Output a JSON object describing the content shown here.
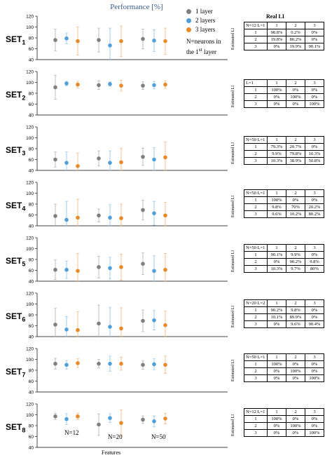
{
  "figure": {
    "title": "Performance [%]",
    "legend": [
      {
        "label": "1 layer",
        "color": "#7f7f7f"
      },
      {
        "label": "2 layers",
        "color": "#4f9fd8"
      },
      {
        "label": "3 layers",
        "color": "#e8892b"
      }
    ],
    "note_line1": "N=neurons in",
    "note_line2": "the 1",
    "note_sup": "st",
    "note_line2_end": " layer",
    "xaxis_title": "Features",
    "table_header": "Real LI",
    "estimated_label": "Estimated LI",
    "feature_labels": [
      "N=12",
      "N=20",
      "N=50"
    ]
  },
  "chart_data": [
    {
      "type": "scatter",
      "set": "SET",
      "sub": "1",
      "ylim": [
        40,
        120
      ],
      "yticks": [
        40,
        60,
        80,
        100,
        120
      ],
      "groups": [
        "N=12",
        "N=20",
        "N=50"
      ],
      "series": [
        {
          "name": "1 layer",
          "values": [
            76,
            76,
            78
          ],
          "err": [
            20,
            22,
            18
          ]
        },
        {
          "name": "2 layers",
          "values": [
            79,
            66,
            75
          ],
          "err": [
            10,
            32,
            20
          ]
        },
        {
          "name": "3 layers",
          "values": [
            74,
            74,
            74
          ],
          "err": [
            26,
            28,
            24
          ]
        }
      ]
    },
    {
      "type": "scatter",
      "set": "SET",
      "sub": "2",
      "ylim": [
        40,
        120
      ],
      "yticks": [
        40,
        60,
        80,
        100,
        120
      ],
      "groups": [
        "N=12",
        "N=20",
        "N=50"
      ],
      "series": [
        {
          "name": "1 layer",
          "values": [
            91,
            95,
            94
          ],
          "err": [
            22,
            8,
            7
          ]
        },
        {
          "name": "2 layers",
          "values": [
            98,
            97,
            95
          ],
          "err": [
            4,
            4,
            7
          ]
        },
        {
          "name": "3 layers",
          "values": [
            96,
            94,
            96
          ],
          "err": [
            6,
            10,
            7
          ]
        }
      ]
    },
    {
      "type": "scatter",
      "set": "SET",
      "sub": "3",
      "ylim": [
        40,
        120
      ],
      "yticks": [
        40,
        60,
        80,
        100,
        120
      ],
      "groups": [
        "N=12",
        "N=20",
        "N=50"
      ],
      "series": [
        {
          "name": "1 layer",
          "values": [
            60,
            62,
            65
          ],
          "err": [
            14,
            14,
            16
          ]
        },
        {
          "name": "2 layers",
          "values": [
            54,
            54,
            60
          ],
          "err": [
            20,
            22,
            22
          ]
        },
        {
          "name": "3 layers",
          "values": [
            48,
            55,
            64
          ],
          "err": [
            24,
            26,
            28
          ]
        }
      ]
    },
    {
      "type": "scatter",
      "set": "SET",
      "sub": "4",
      "ylim": [
        40,
        120
      ],
      "yticks": [
        40,
        60,
        80,
        100,
        120
      ],
      "groups": [
        "N=12",
        "N=20",
        "N=50"
      ],
      "series": [
        {
          "name": "1 layer",
          "values": [
            58,
            59,
            69
          ],
          "err": [
            22,
            12,
            18
          ]
        },
        {
          "name": "2 layers",
          "values": [
            51,
            55,
            63
          ],
          "err": [
            34,
            24,
            22
          ]
        },
        {
          "name": "3 layers",
          "values": [
            55,
            54,
            59
          ],
          "err": [
            34,
            26,
            24
          ]
        }
      ]
    },
    {
      "type": "scatter",
      "set": "SET",
      "sub": "5",
      "ylim": [
        40,
        120
      ],
      "yticks": [
        40,
        60,
        80,
        100,
        120
      ],
      "groups": [
        "N=12",
        "N=20",
        "N=50"
      ],
      "series": [
        {
          "name": "1 layer",
          "values": [
            61,
            66,
            72
          ],
          "err": [
            18,
            20,
            20
          ]
        },
        {
          "name": "2 layers",
          "values": [
            61,
            64,
            59
          ],
          "err": [
            16,
            20,
            28
          ]
        },
        {
          "name": "3 layers",
          "values": [
            59,
            66,
            61
          ],
          "err": [
            32,
            24,
            30
          ]
        }
      ]
    },
    {
      "type": "scatter",
      "set": "SET",
      "sub": "6",
      "ylim": [
        40,
        120
      ],
      "yticks": [
        40,
        60,
        80,
        100,
        120
      ],
      "groups": [
        "N=12",
        "N=20",
        "N=50"
      ],
      "series": [
        {
          "name": "1 layer",
          "values": [
            62,
            64,
            69
          ],
          "err": [
            30,
            34,
            20
          ]
        },
        {
          "name": "2 layers",
          "values": [
            53,
            58,
            70
          ],
          "err": [
            24,
            36,
            18
          ]
        },
        {
          "name": "3 layers",
          "values": [
            52,
            55,
            61
          ],
          "err": [
            34,
            38,
            26
          ]
        }
      ]
    },
    {
      "type": "scatter",
      "set": "SET",
      "sub": "7",
      "ylim": [
        40,
        120
      ],
      "yticks": [
        40,
        60,
        80,
        100,
        120
      ],
      "groups": [
        "N=12",
        "N=20",
        "N=50"
      ],
      "series": [
        {
          "name": "1 layer",
          "values": [
            92,
            92,
            90
          ],
          "err": [
            10,
            8,
            8
          ]
        },
        {
          "name": "2 layers",
          "values": [
            90,
            92,
            91
          ],
          "err": [
            8,
            14,
            10
          ]
        },
        {
          "name": "3 layers",
          "values": [
            93,
            92,
            90
          ],
          "err": [
            8,
            12,
            16
          ]
        }
      ]
    },
    {
      "type": "scatter",
      "set": "SET",
      "sub": "8",
      "ylim": [
        40,
        120
      ],
      "yticks": [
        40,
        60,
        80,
        100,
        120
      ],
      "groups": [
        "N=12",
        "N=20",
        "N=50"
      ],
      "series": [
        {
          "name": "1 layer",
          "values": [
            97,
            82,
            91
          ],
          "err": [
            6,
            20,
            7
          ]
        },
        {
          "name": "2 layers",
          "values": [
            92,
            94,
            88
          ],
          "err": [
            10,
            8,
            10
          ]
        },
        {
          "name": "3 layers",
          "values": [
            97,
            85,
            93
          ],
          "err": [
            6,
            24,
            10
          ]
        }
      ]
    }
  ],
  "tables": [
    {
      "corner": "N=12 L=1",
      "cols": [
        "1",
        "2",
        "3"
      ],
      "rows": [
        [
          "1",
          "98.8%",
          "0.2%",
          "0%"
        ],
        [
          "2",
          "19.8%",
          "80.2%",
          "0%"
        ],
        [
          "3",
          "0%",
          "19.9%",
          "90.1%"
        ]
      ]
    },
    {
      "corner": "L=1",
      "cols": [
        "1",
        "2",
        "3"
      ],
      "rows": [
        [
          "1",
          "100%",
          "0%",
          "0%"
        ],
        [
          "2",
          "0%",
          "100%",
          "0%"
        ],
        [
          "3",
          "0%",
          "0%",
          "100%"
        ]
      ]
    },
    {
      "corner": "N=50 L=1",
      "cols": [
        "1",
        "2",
        "3"
      ],
      "rows": [
        [
          "1",
          "79.3%",
          "20.7%",
          "0%"
        ],
        [
          "2",
          "9.9%",
          "79.8%",
          "10.3%"
        ],
        [
          "3",
          "10.3%",
          "38.9%",
          "50.8%"
        ]
      ]
    },
    {
      "corner": "N=50 L=1",
      "cols": [
        "1",
        "2",
        "3"
      ],
      "rows": [
        [
          "1",
          "100%",
          "0%",
          "0%"
        ],
        [
          "2",
          "9.8%",
          "70%",
          "20.2%"
        ],
        [
          "3",
          "9.6%",
          "10.2%",
          "80.2%"
        ]
      ]
    },
    {
      "corner": "N=50 L=1",
      "cols": [
        "1",
        "2",
        "3"
      ],
      "rows": [
        [
          "1",
          "90.1%",
          "9.9%",
          "0%"
        ],
        [
          "2",
          "0%",
          "90.2%",
          "9.8%"
        ],
        [
          "3",
          "10.3%",
          "9.7%",
          "80%"
        ]
      ]
    },
    {
      "corner": "N=20 L=2",
      "cols": [
        "1",
        "2",
        "3"
      ],
      "rows": [
        [
          "1",
          "90.2%",
          "9.8%",
          "0%"
        ],
        [
          "2",
          "10.1%",
          "89.9%",
          "0%"
        ],
        [
          "3",
          "0%",
          "9.6%",
          "90.4%"
        ]
      ]
    },
    {
      "corner": "N=50 L=1",
      "cols": [
        "1",
        "2",
        "3"
      ],
      "rows": [
        [
          "1",
          "100%",
          "0%",
          "0%"
        ],
        [
          "2",
          "0%",
          "100%",
          "0%"
        ],
        [
          "3",
          "0%",
          "0%",
          "100%"
        ]
      ]
    },
    {
      "corner": "N=12 L=1",
      "cols": [
        "1",
        "2",
        "3"
      ],
      "rows": [
        [
          "1",
          "100%",
          "0%",
          "0%"
        ],
        [
          "2",
          "0%",
          "100%",
          "0%"
        ],
        [
          "3",
          "0%",
          "0%",
          "100%"
        ]
      ]
    }
  ]
}
